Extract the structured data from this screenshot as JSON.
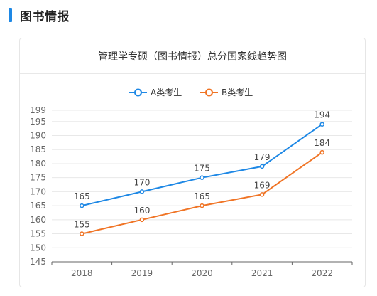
{
  "section": {
    "title": "图书情报"
  },
  "card": {
    "title": "管理学专硕（图书情报）总分国家线趋势图"
  },
  "colors": {
    "accent": "#1e88e5",
    "series_a": "#1e88e5",
    "series_b": "#f07425"
  },
  "chart_data": {
    "type": "line",
    "title": "管理学专硕（图书情报）总分国家线趋势图",
    "xlabel": "",
    "ylabel": "",
    "categories": [
      "2018",
      "2019",
      "2020",
      "2021",
      "2022"
    ],
    "series": [
      {
        "name": "A类考生",
        "values": [
          165,
          170,
          175,
          179,
          194
        ],
        "color": "#1e88e5"
      },
      {
        "name": "B类考生",
        "values": [
          155,
          160,
          165,
          169,
          184
        ],
        "color": "#f07425"
      }
    ],
    "ylim": [
      145,
      199
    ],
    "yticks": [
      145,
      150,
      155,
      160,
      165,
      170,
      175,
      180,
      185,
      190,
      195,
      199
    ],
    "grid": true,
    "legend": "top-center"
  }
}
